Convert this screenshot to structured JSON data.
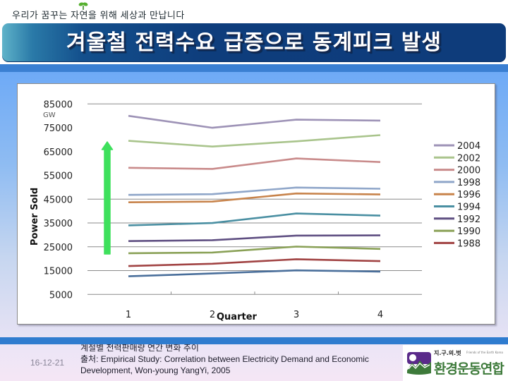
{
  "slide": {
    "tagline": "우리가 꿈꾸는 자연을 위해 세상과 만납니다",
    "title": "겨울철 전력수요 급증으로 동계피크 발생"
  },
  "footer": {
    "date": "16-12-21",
    "caption_lines": [
      "계절별 전력판매량 연간 변화 추이",
      "출처: Empirical Study: Correlation between Electricity Demand and Economic",
      "Development, Won-young YangYi, 2005"
    ],
    "logo": {
      "top_text": "지.구.의.벗",
      "small_text": "Friends of the Earth Korea",
      "main_text": "환경운동연합"
    }
  },
  "icons": {
    "tagline_decoration": "sprout-icon",
    "chart_annotation": "green-up-arrow-icon",
    "logo": "mountain-logo-icon"
  },
  "colors": {
    "title_bar": "#0e3c7b",
    "band": "#3a7fd2",
    "annotation_arrow": "#3ee05c",
    "gridline": "#8a8a8a",
    "logo_purple": "#5a2a8a",
    "logo_green": "#3d7a3a"
  },
  "chart_data": {
    "type": "line",
    "title": "",
    "xlabel": "Quarter",
    "ylabel": "Power Sold",
    "y_unit": "GW",
    "categories": [
      "1",
      "2",
      "3",
      "4"
    ],
    "yticks": [
      85000,
      75000,
      65000,
      55000,
      45000,
      35000,
      25000,
      15000,
      5000
    ],
    "ylim": [
      5000,
      85000
    ],
    "gridlines": [
      85000,
      45000,
      35000,
      25000,
      15000,
      5000
    ],
    "grid": true,
    "legend_position": "right",
    "annotation": "green upward arrow beside y-axis indicating rising demand",
    "series": [
      {
        "name": "2004",
        "color": "#9d92b6",
        "values": [
          80000,
          75000,
          78400,
          78000
        ],
        "in_legend": true
      },
      {
        "name": "2002",
        "color": "#a9c48c",
        "values": [
          69500,
          67100,
          69300,
          71900
        ],
        "in_legend": true
      },
      {
        "name": "2000",
        "color": "#c98b8b",
        "values": [
          58200,
          57700,
          62100,
          60600
        ],
        "in_legend": true
      },
      {
        "name": "1998",
        "color": "#8fa6c9",
        "values": [
          46800,
          47100,
          49900,
          49400
        ],
        "in_legend": true
      },
      {
        "name": "1996",
        "color": "#c8844c",
        "values": [
          43700,
          44000,
          47400,
          47000
        ],
        "in_legend": true
      },
      {
        "name": "1994",
        "color": "#4a8fa2",
        "values": [
          34000,
          35000,
          39000,
          38100
        ],
        "in_legend": true
      },
      {
        "name": "1992",
        "color": "#5f4f82",
        "values": [
          27400,
          27800,
          29700,
          29800
        ],
        "in_legend": true
      },
      {
        "name": "1990",
        "color": "#8aa157",
        "values": [
          22300,
          22600,
          25100,
          24100
        ],
        "in_legend": true
      },
      {
        "name": "1988",
        "color": "#a14343",
        "values": [
          16900,
          17900,
          19800,
          19000
        ],
        "in_legend": true
      },
      {
        "name": "",
        "color": "#4a6f9b",
        "values": [
          12600,
          13800,
          15100,
          14600
        ],
        "in_legend": false
      }
    ]
  }
}
